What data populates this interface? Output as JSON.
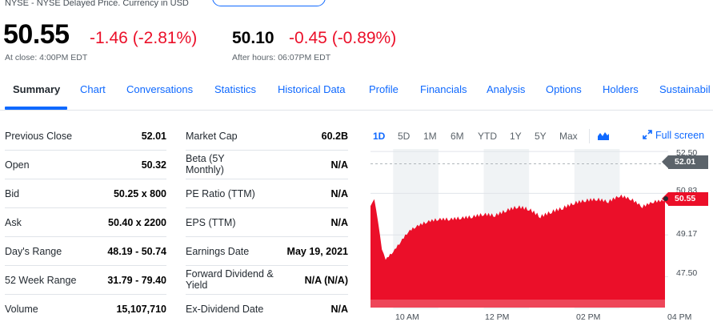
{
  "header": {
    "exchange": "NYSE - NYSE Delayed Price. Currency in USD",
    "price": "50.55",
    "change": "-1.46 (-2.81%)",
    "close_note": "At close: 4:00PM EDT",
    "after_hours_price": "50.10",
    "after_hours_change": "-0.45 (-0.89%)",
    "after_hours_note": "After hours: 06:07PM EDT"
  },
  "tabs": [
    "Summary",
    "Chart",
    "Conversations",
    "Statistics",
    "Historical Data",
    "Profile",
    "Financials",
    "Analysis",
    "Options",
    "Holders",
    "Sustainabil"
  ],
  "left_table": [
    {
      "label": "Previous Close",
      "value": "52.01"
    },
    {
      "label": "Open",
      "value": "50.32"
    },
    {
      "label": "Bid",
      "value": "50.25 x 800"
    },
    {
      "label": "Ask",
      "value": "50.40 x 2200"
    },
    {
      "label": "Day's Range",
      "value": "48.19 - 50.74"
    },
    {
      "label": "52 Week Range",
      "value": "31.79 - 79.40"
    },
    {
      "label": "Volume",
      "value": "15,107,710"
    }
  ],
  "right_table": [
    {
      "label": "Market Cap",
      "value": "60.2B"
    },
    {
      "label": "Beta (5Y Monthly)",
      "value": "N/A"
    },
    {
      "label": "PE Ratio (TTM)",
      "value": "N/A"
    },
    {
      "label": "EPS (TTM)",
      "value": "N/A"
    },
    {
      "label": "Earnings Date",
      "value": "May 19, 2021"
    },
    {
      "label": "Forward Dividend & Yield",
      "value": "N/A (N/A)"
    },
    {
      "label": "Ex-Dividend Date",
      "value": "N/A"
    }
  ],
  "chart_controls": {
    "ranges": [
      "1D",
      "5D",
      "1M",
      "6M",
      "YTD",
      "1Y",
      "5Y",
      "Max"
    ],
    "active_range": "1D",
    "chart_type_icon": "mountain-chart-icon",
    "fullscreen_label": "Full screen",
    "fullscreen_icon": "expand-arrows-icon"
  },
  "colors": {
    "accent": "#0f69ff",
    "negative": "#eb0f29",
    "previous_close_flag": "#5b636a"
  },
  "chart_data": {
    "type": "area",
    "x": [
      "09:30",
      "09:35",
      "09:40",
      "09:45",
      "09:50",
      "10:00",
      "10:10",
      "10:20",
      "10:30",
      "10:45",
      "11:00",
      "11:15",
      "11:30",
      "11:45",
      "12:00",
      "12:15",
      "12:30",
      "12:45",
      "13:00",
      "13:15",
      "13:30",
      "13:45",
      "14:00",
      "14:15",
      "14:30",
      "14:45",
      "15:00",
      "15:15",
      "15:30",
      "15:45",
      "16:00"
    ],
    "y": [
      50.32,
      50.6,
      49.7,
      48.6,
      48.19,
      48.5,
      48.9,
      49.3,
      49.5,
      49.7,
      49.8,
      49.8,
      49.85,
      49.9,
      50.0,
      49.95,
      50.15,
      50.3,
      50.2,
      49.9,
      50.1,
      50.25,
      50.45,
      50.55,
      50.6,
      50.5,
      50.74,
      50.6,
      50.3,
      50.5,
      50.55
    ],
    "y_ticks": [
      "52.50",
      "50.83",
      "49.17",
      "47.50"
    ],
    "x_ticks": [
      "10 AM",
      "12 PM",
      "02 PM",
      "04 PM"
    ],
    "previous_close": "52.01",
    "last_price": "50.55",
    "ylim": [
      46.2,
      52.6
    ],
    "grid": true
  }
}
